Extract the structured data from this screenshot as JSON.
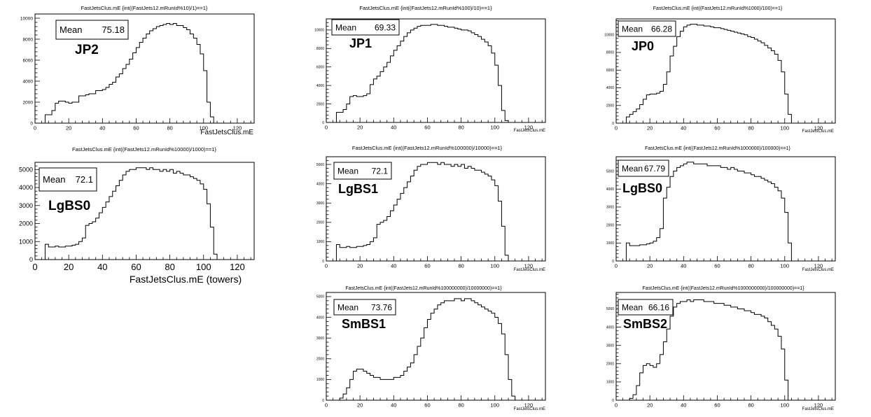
{
  "chart_data": [
    {
      "type": "bar",
      "title": "FastJetsClus.mE {int((FastJets12.mRunId%10)/1)==1}",
      "trigger": "JP2",
      "stats": {
        "label": "Mean",
        "value": "75.18"
      },
      "xlabel": "FastJetsClus.mE",
      "ylabel": "",
      "xlim": [
        0,
        130
      ],
      "ylim": [
        0,
        10400
      ],
      "xticks": [
        0,
        20,
        40,
        60,
        80,
        100,
        120
      ],
      "yticks": [
        0,
        2000,
        4000,
        6000,
        8000,
        10000
      ],
      "bin_width": 2,
      "x_start": 4,
      "values": [
        0,
        800,
        800,
        1200,
        1900,
        2100,
        2100,
        2000,
        1900,
        2000,
        2000,
        2600,
        2600,
        2700,
        2800,
        2800,
        3100,
        3100,
        3200,
        3400,
        3700,
        3900,
        4400,
        4700,
        5200,
        5600,
        6100,
        6700,
        7200,
        7700,
        8100,
        8500,
        8800,
        9000,
        9200,
        9300,
        9400,
        9500,
        9400,
        9500,
        9300,
        9300,
        9100,
        8900,
        8500,
        8100,
        7500,
        6600,
        5000,
        2000,
        600,
        0
      ]
    },
    {
      "type": "bar",
      "title": "FastJetsClus.mE {int((FastJets12.mRunId%100)/10)==1}",
      "trigger": "JP1",
      "stats": {
        "label": "Mean",
        "value": "69.33"
      },
      "xlabel": "FastJetsClus.mE",
      "ylabel": "",
      "xlim": [
        0,
        130
      ],
      "ylim": [
        0,
        11200
      ],
      "xticks": [
        0,
        20,
        40,
        60,
        80,
        100,
        120
      ],
      "yticks": [
        0,
        2000,
        4000,
        6000,
        8000,
        10000
      ],
      "bin_width": 2,
      "x_start": 4,
      "values": [
        0,
        1100,
        1100,
        1400,
        2000,
        2800,
        2900,
        2800,
        2800,
        2900,
        3100,
        4100,
        4700,
        5000,
        5500,
        6000,
        6500,
        7200,
        7800,
        8300,
        8800,
        9300,
        9700,
        10000,
        10200,
        10400,
        10500,
        10500,
        10500,
        10600,
        10600,
        10500,
        10500,
        10400,
        10300,
        10300,
        10200,
        10100,
        10000,
        10000,
        9900,
        9700,
        9500,
        9300,
        9000,
        8700,
        8300,
        7500,
        6200,
        4000,
        1300,
        200,
        0
      ]
    },
    {
      "type": "bar",
      "title": "FastJetsClus.mE {int((FastJets12.mRunId%1000)/100)==1}",
      "trigger": "JP0",
      "stats": {
        "label": "Mean",
        "value": "66.28"
      },
      "xlabel": "FastJetsClus.mE",
      "ylabel": "",
      "xlim": [
        0,
        130
      ],
      "ylim": [
        0,
        11800
      ],
      "xticks": [
        0,
        20,
        40,
        60,
        80,
        100,
        120
      ],
      "yticks": [
        0,
        2000,
        4000,
        6000,
        8000,
        10000
      ],
      "bin_width": 2,
      "x_start": 4,
      "values": [
        0,
        700,
        1000,
        1300,
        1600,
        2100,
        2700,
        3200,
        3300,
        3300,
        3400,
        3600,
        4400,
        5800,
        7600,
        8700,
        9800,
        10400,
        10900,
        11100,
        11200,
        11200,
        11100,
        11100,
        11000,
        11000,
        10900,
        10800,
        10800,
        10700,
        10600,
        10500,
        10400,
        10300,
        10200,
        10100,
        10000,
        9800,
        9700,
        9500,
        9300,
        9100,
        8800,
        8500,
        8200,
        7800,
        7100,
        5800,
        3300,
        1000,
        0
      ]
    },
    {
      "type": "bar",
      "title": "FastJetsClus.mE {int((FastJets12.mRunId%10000)/1000)==1}",
      "trigger": "LgBS0",
      "stats": {
        "label": "Mean",
        "value": "72.1"
      },
      "xlabel": "FastJetsClus.mE (towers)",
      "ylabel": "",
      "xlim": [
        0,
        130
      ],
      "ylim": [
        0,
        5400
      ],
      "xticks": [
        0,
        20,
        40,
        60,
        80,
        100,
        120
      ],
      "yticks": [
        0,
        1000,
        2000,
        3000,
        4000,
        5000
      ],
      "bin_width": 2,
      "x_start": 6,
      "values": [
        850,
        700,
        700,
        750,
        700,
        700,
        750,
        750,
        800,
        850,
        1000,
        1200,
        1900,
        2000,
        2100,
        2300,
        2600,
        2900,
        3200,
        3500,
        3800,
        4100,
        4400,
        4700,
        4900,
        5000,
        5000,
        5100,
        5100,
        5100,
        5000,
        5100,
        5000,
        5000,
        4900,
        5000,
        4900,
        5000,
        4800,
        4900,
        4800,
        4700,
        4700,
        4600,
        4500,
        4400,
        4200,
        3900,
        3100,
        1800,
        300,
        0
      ]
    },
    {
      "type": "bar",
      "title": "FastJetsClus.mE {int((FastJets12.mRunId%100000)/10000)==1}",
      "trigger": "LgBS1",
      "stats": {
        "label": "Mean",
        "value": "72.1"
      },
      "xlabel": "FastJetsClus.mE",
      "ylabel": "",
      "xlim": [
        0,
        130
      ],
      "ylim": [
        0,
        5400
      ],
      "xticks": [
        0,
        20,
        40,
        60,
        80,
        100,
        120
      ],
      "yticks": [
        0,
        1000,
        2000,
        3000,
        4000,
        5000
      ],
      "bin_width": 2,
      "x_start": 6,
      "values": [
        850,
        700,
        700,
        750,
        700,
        700,
        750,
        750,
        800,
        850,
        1000,
        1200,
        1900,
        2000,
        2100,
        2300,
        2600,
        2900,
        3200,
        3500,
        3800,
        4100,
        4400,
        4700,
        4900,
        5000,
        5000,
        5100,
        5100,
        5100,
        5000,
        5100,
        5000,
        5000,
        4900,
        5000,
        4900,
        5000,
        4800,
        4900,
        4800,
        4700,
        4700,
        4600,
        4500,
        4400,
        4200,
        3900,
        3100,
        1800,
        300,
        0
      ]
    },
    {
      "type": "bar",
      "title": "FastJetsClus.mE {int((FastJets12.mRunId%1000000)/100000)==1}",
      "trigger": "LgBS0",
      "stats": {
        "label": "Mean",
        "value": "67.79"
      },
      "xlabel": "FastJetsClus.mE",
      "ylabel": "",
      "xlim": [
        0,
        130
      ],
      "ylim": [
        0,
        5800
      ],
      "xticks": [
        0,
        20,
        40,
        60,
        80,
        100,
        120
      ],
      "yticks": [
        0,
        1000,
        2000,
        3000,
        4000,
        5000
      ],
      "bin_width": 2,
      "x_start": 6,
      "values": [
        1000,
        850,
        850,
        850,
        900,
        900,
        950,
        1000,
        1100,
        1300,
        1800,
        3500,
        4100,
        4700,
        5000,
        5200,
        5300,
        5400,
        5500,
        5500,
        5400,
        5400,
        5400,
        5400,
        5300,
        5300,
        5300,
        5300,
        5200,
        5200,
        5100,
        5200,
        5100,
        5000,
        5000,
        4900,
        4900,
        4800,
        4700,
        4700,
        4600,
        4500,
        4400,
        4300,
        4100,
        3900,
        3500,
        2700,
        1000,
        0
      ]
    },
    {
      "type": "bar",
      "title": "FastJetsClus.mE {int((FastJets12.mRunId%100000000)/10000000)==1}",
      "trigger": "SmBS1",
      "stats": {
        "label": "Mean",
        "value": "73.76"
      },
      "xlabel": "FastJetsClus.mE",
      "ylabel": "",
      "xlim": [
        0,
        130
      ],
      "ylim": [
        0,
        5200
      ],
      "xticks": [
        0,
        20,
        40,
        60,
        80,
        100,
        120
      ],
      "yticks": [
        0,
        1000,
        2000,
        3000,
        4000,
        5000
      ],
      "bin_width": 2,
      "x_start": 6,
      "values": [
        0,
        100,
        300,
        600,
        1000,
        1400,
        1500,
        1500,
        1400,
        1300,
        1200,
        1100,
        1100,
        1000,
        1000,
        1000,
        1000,
        1100,
        1100,
        1200,
        1400,
        1600,
        1800,
        2200,
        2600,
        3000,
        3500,
        3900,
        4200,
        4400,
        4600,
        4700,
        4800,
        4800,
        4800,
        4900,
        4900,
        4800,
        4900,
        4900,
        4800,
        4700,
        4600,
        4500,
        4400,
        4300,
        4200,
        4000,
        3700,
        3200,
        2200,
        1000,
        200,
        0
      ]
    },
    {
      "type": "bar",
      "title": "FastJetsClus.mE {int((FastJets12.mRunId%1000000000)/100000000)==1}",
      "trigger": "SmBS2",
      "stats": {
        "label": "Mean",
        "value": "66.16"
      },
      "xlabel": "FastJetsClus.mE",
      "ylabel": "",
      "xlim": [
        0,
        130
      ],
      "ylim": [
        0,
        5900
      ],
      "xticks": [
        0,
        20,
        40,
        60,
        80,
        100,
        120
      ],
      "yticks": [
        0,
        1000,
        2000,
        3000,
        4000,
        5000
      ],
      "bin_width": 2,
      "x_start": 6,
      "values": [
        0,
        100,
        300,
        800,
        1500,
        1900,
        2000,
        1900,
        1800,
        2000,
        2500,
        3200,
        3900,
        4600,
        5100,
        5300,
        5400,
        5400,
        5500,
        5400,
        5500,
        5500,
        5500,
        5400,
        5400,
        5400,
        5300,
        5300,
        5300,
        5200,
        5200,
        5100,
        5100,
        5000,
        5000,
        4900,
        4900,
        4800,
        4700,
        4700,
        4600,
        4500,
        4300,
        4100,
        3900,
        3500,
        2800,
        1100,
        0
      ]
    }
  ]
}
